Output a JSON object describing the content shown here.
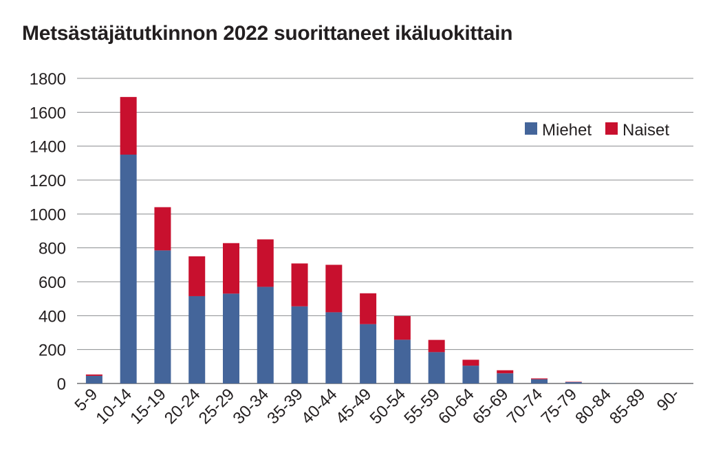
{
  "chart_data": {
    "type": "bar",
    "stacked": true,
    "title": "Metsästäjätutkinnon 2022 suorittaneet ikäluokittain",
    "xlabel": "",
    "ylabel": "",
    "ylim": [
      0,
      1800
    ],
    "yticks": [
      "0",
      "200",
      "400",
      "600",
      "800",
      "1000",
      "1200",
      "1400",
      "1600",
      "1800"
    ],
    "grid": true,
    "legend_position": "top-right",
    "categories": [
      "5-9",
      "10-14",
      "15-19",
      "20-24",
      "25-29",
      "30-34",
      "35-39",
      "40-44",
      "45-49",
      "50-54",
      "55-59",
      "60-64",
      "65-69",
      "70-74",
      "75-79",
      "80-84",
      "85-89",
      "90-"
    ],
    "series": [
      {
        "name": "Miehet",
        "color": "#44659a",
        "values": [
          45,
          1350,
          785,
          515,
          530,
          570,
          455,
          420,
          350,
          258,
          185,
          105,
          60,
          25,
          8,
          1,
          0,
          0
        ]
      },
      {
        "name": "Naiset",
        "color": "#c8102e",
        "values": [
          8,
          340,
          255,
          235,
          298,
          280,
          253,
          280,
          182,
          140,
          72,
          35,
          18,
          5,
          2,
          0,
          0,
          0
        ]
      }
    ]
  }
}
